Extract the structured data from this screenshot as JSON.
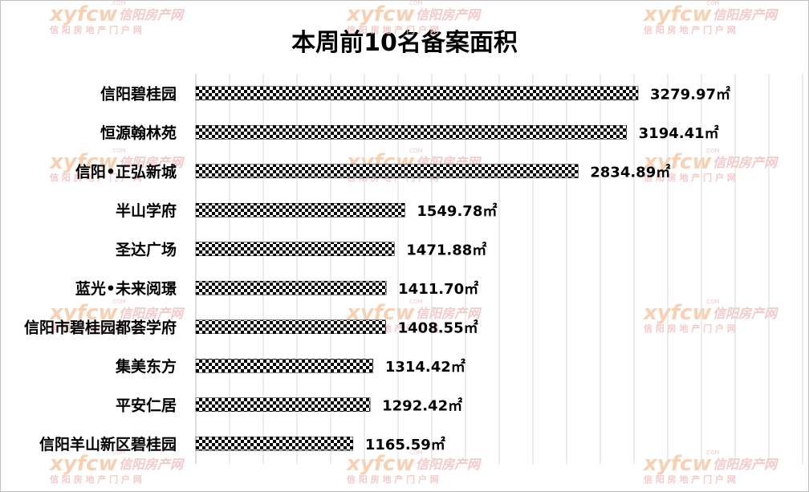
{
  "watermark": {
    "logo_text": "xyfcw",
    "site_name": "信阳房产网",
    "site_subtitle": "信 阳 房 地 产 门 户 网",
    "domain_suffix": ".COM",
    "logo_color": "#f7c9a7",
    "text_color": "#f2c1c1"
  },
  "chart_data": {
    "type": "bar",
    "orientation": "horizontal",
    "title": "本周前10名备案面积",
    "categories": [
      "信阳碧桂园",
      "恒源翰林苑",
      "信阳•正弘新城",
      "半山学府",
      "圣达广场",
      "蓝光•未来阅璟",
      "信阳市碧桂园都荟学府",
      "集美东方",
      "平安仁居",
      "信阳羊山新区碧桂园"
    ],
    "values": [
      3279.97,
      3194.41,
      2834.89,
      1549.78,
      1471.88,
      1411.7,
      1408.55,
      1314.42,
      1292.42,
      1165.59
    ],
    "data_labels": [
      "3279.97㎡",
      "3194.41㎡",
      "2834.89㎡",
      "1549.78㎡",
      "1471.88㎡",
      "1411.70㎡",
      "1408.55㎡",
      "1314.42㎡",
      "1292.42㎡",
      "1165.59㎡"
    ],
    "xlim": [
      0,
      4500
    ],
    "grid": true,
    "legend": "none",
    "bar_pattern": "checkerboard",
    "bar_color": "#000000"
  }
}
